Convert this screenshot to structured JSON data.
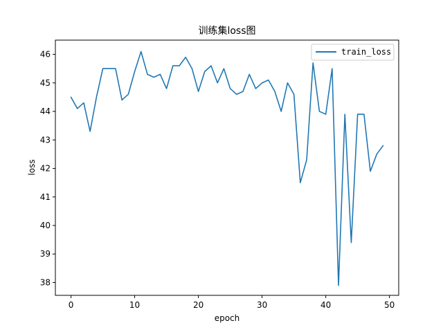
{
  "chart_data": {
    "type": "line",
    "title": "训练集loss图",
    "xlabel": "epoch",
    "ylabel": "loss",
    "xlim": [
      -2.45,
      51.45
    ],
    "ylim": [
      37.55,
      46.5
    ],
    "xticks": [
      0,
      10,
      20,
      30,
      40,
      50
    ],
    "yticks": [
      38,
      39,
      40,
      41,
      42,
      43,
      44,
      45,
      46
    ],
    "grid": false,
    "legend_position": "top-right",
    "series": [
      {
        "name": "train_loss",
        "color": "#1f77b4",
        "x": [
          0,
          1,
          2,
          3,
          4,
          5,
          6,
          7,
          8,
          9,
          10,
          11,
          12,
          13,
          14,
          15,
          16,
          17,
          18,
          19,
          20,
          21,
          22,
          23,
          24,
          25,
          26,
          27,
          28,
          29,
          30,
          31,
          32,
          33,
          34,
          35,
          36,
          37,
          38,
          39,
          40,
          41,
          42,
          43,
          44,
          45,
          46,
          47,
          48,
          49
        ],
        "values": [
          44.5,
          44.1,
          44.3,
          43.3,
          44.5,
          45.5,
          45.5,
          45.5,
          44.4,
          44.6,
          45.4,
          46.1,
          45.3,
          45.2,
          45.3,
          44.8,
          45.6,
          45.6,
          45.9,
          45.5,
          44.7,
          45.4,
          45.6,
          45.0,
          45.5,
          44.8,
          44.6,
          44.7,
          45.3,
          44.8,
          45.0,
          45.1,
          44.7,
          44.0,
          45.0,
          44.6,
          41.5,
          42.3,
          45.7,
          44.0,
          43.9,
          45.5,
          37.9,
          43.9,
          39.4,
          43.9,
          43.9,
          41.9,
          42.5,
          42.8
        ]
      }
    ]
  }
}
